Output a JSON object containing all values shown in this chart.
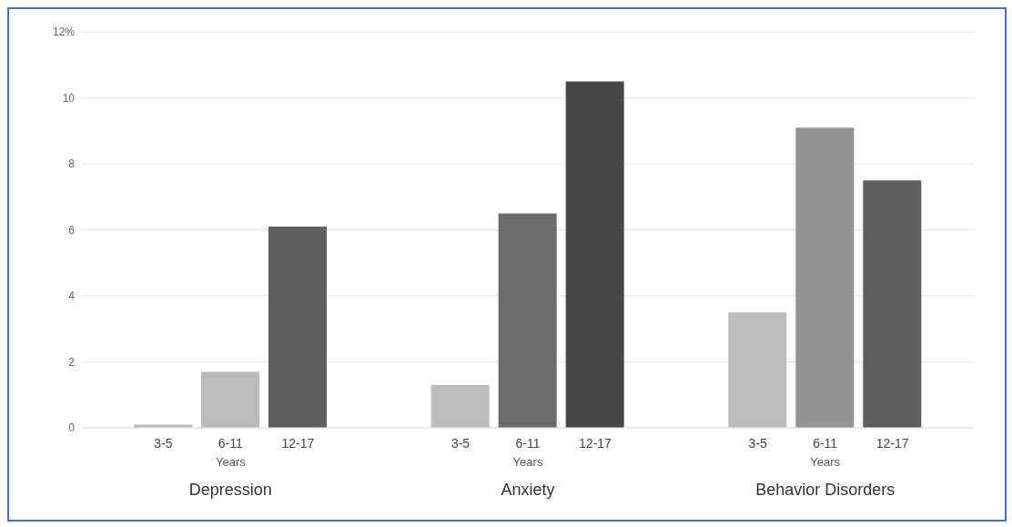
{
  "chart_data": {
    "type": "bar",
    "xlabel": "Years",
    "categories": [
      "Depression",
      "Anxiety",
      "Behavior Disorders"
    ],
    "series": [
      {
        "name": "3-5",
        "colors": [
          "#bdbdbd",
          "#bdbdbd",
          "#bdbdbd"
        ],
        "values": [
          0.1,
          1.3,
          3.5
        ]
      },
      {
        "name": "6-11",
        "colors": [
          "#bbbbbb",
          "#6b6b6b",
          "#939393"
        ],
        "values": [
          1.7,
          6.5,
          9.1
        ]
      },
      {
        "name": "12-17",
        "colors": [
          "#5f5f5f",
          "#474747",
          "#5e5e5e"
        ],
        "values": [
          6.1,
          10.5,
          7.5
        ]
      }
    ],
    "ylim": [
      0,
      12
    ],
    "yticks": [
      0,
      2,
      4,
      6,
      8,
      10,
      {
        "value": 12,
        "label": "12%"
      }
    ],
    "grid": "y",
    "legend": false
  }
}
